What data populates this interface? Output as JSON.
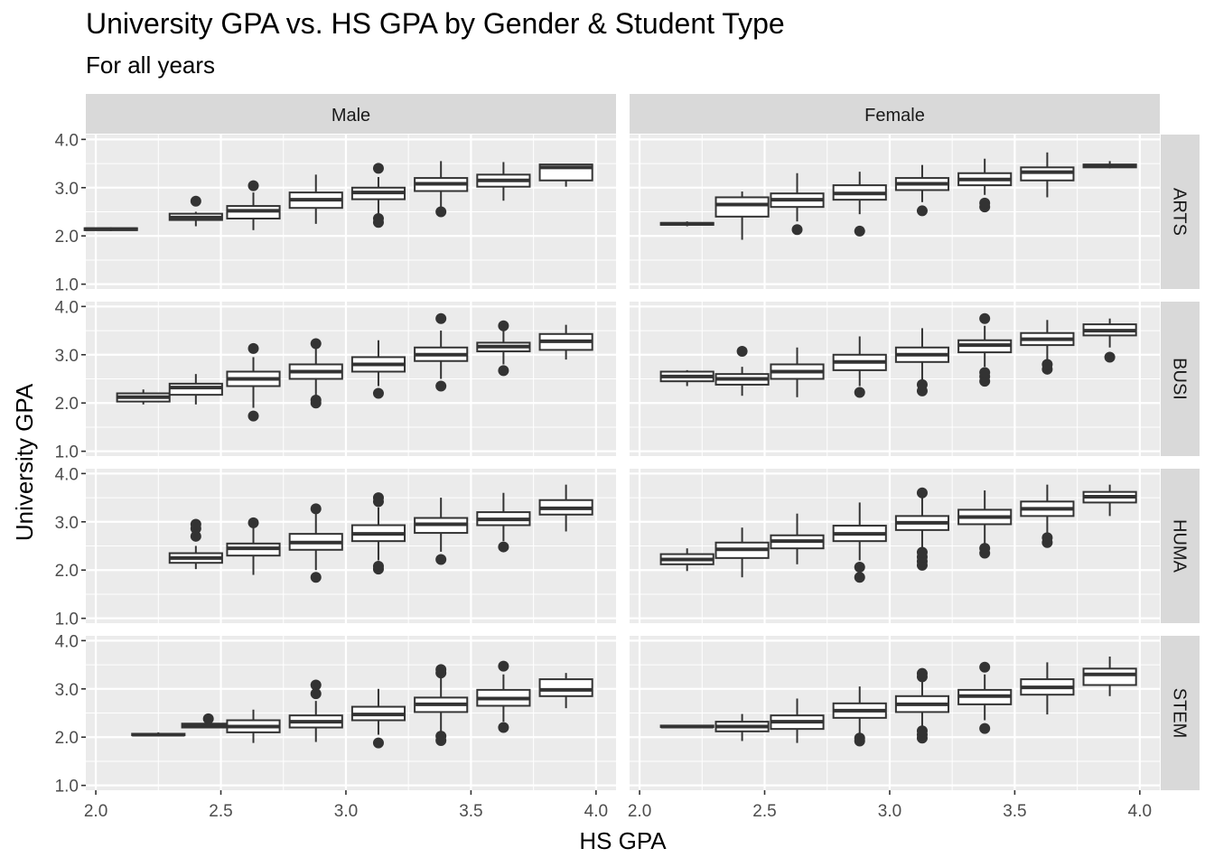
{
  "chart_data": {
    "type": "boxplot",
    "title": "University GPA vs. HS GPA by Gender & Student Type",
    "subtitle": "For all years",
    "xlabel": "HS GPA",
    "ylabel": "University GPA",
    "xlim": [
      1.96,
      4.08
    ],
    "ylim": [
      0.9,
      4.1
    ],
    "x_ticks": [
      "2.0",
      "2.5",
      "3.0",
      "3.5",
      "4.0"
    ],
    "y_ticks": [
      "1.0",
      "2.0",
      "3.0",
      "4.0"
    ],
    "grid": true,
    "columns": [
      "Male",
      "Female"
    ],
    "rows": [
      "ARTS",
      "BUSI",
      "HUMA",
      "STEM"
    ],
    "panels": [
      {
        "row": "ARTS",
        "col": "Male",
        "boxes": [
          {
            "x": 2.06,
            "lw": 2.1,
            "q1": 2.12,
            "med": 2.14,
            "q3": 2.16,
            "uw": 2.18,
            "out": []
          },
          {
            "x": 2.4,
            "lw": 2.2,
            "q1": 2.33,
            "med": 2.38,
            "q3": 2.46,
            "uw": 2.5,
            "out": [
              2.72
            ]
          },
          {
            "x": 2.63,
            "lw": 2.12,
            "q1": 2.36,
            "med": 2.52,
            "q3": 2.62,
            "uw": 2.9,
            "out": [
              3.04
            ]
          },
          {
            "x": 2.88,
            "lw": 2.25,
            "q1": 2.58,
            "med": 2.75,
            "q3": 2.9,
            "uw": 3.27,
            "out": []
          },
          {
            "x": 3.13,
            "lw": 2.45,
            "q1": 2.76,
            "med": 2.9,
            "q3": 3.0,
            "uw": 3.22,
            "out": [
              2.28,
              2.36,
              3.4
            ]
          },
          {
            "x": 3.38,
            "lw": 2.6,
            "q1": 2.93,
            "med": 3.08,
            "q3": 3.2,
            "uw": 3.55,
            "out": [
              2.5
            ]
          },
          {
            "x": 3.63,
            "lw": 2.73,
            "q1": 3.02,
            "med": 3.15,
            "q3": 3.27,
            "uw": 3.53,
            "out": []
          },
          {
            "x": 3.88,
            "lw": 3.02,
            "q1": 3.15,
            "med": 3.42,
            "q3": 3.48,
            "uw": 3.48,
            "out": []
          }
        ]
      },
      {
        "row": "ARTS",
        "col": "Female",
        "boxes": [
          {
            "x": 2.19,
            "lw": 2.2,
            "q1": 2.23,
            "med": 2.25,
            "q3": 2.27,
            "uw": 2.3,
            "out": []
          },
          {
            "x": 2.41,
            "lw": 1.92,
            "q1": 2.4,
            "med": 2.65,
            "q3": 2.8,
            "uw": 2.92,
            "out": []
          },
          {
            "x": 2.63,
            "lw": 2.3,
            "q1": 2.6,
            "med": 2.75,
            "q3": 2.88,
            "uw": 3.3,
            "out": [
              2.13
            ]
          },
          {
            "x": 2.88,
            "lw": 2.45,
            "q1": 2.75,
            "med": 2.88,
            "q3": 3.05,
            "uw": 3.33,
            "out": [
              2.1
            ]
          },
          {
            "x": 3.13,
            "lw": 2.7,
            "q1": 2.95,
            "med": 3.08,
            "q3": 3.2,
            "uw": 3.47,
            "out": [
              2.52
            ]
          },
          {
            "x": 3.38,
            "lw": 2.85,
            "q1": 3.05,
            "med": 3.17,
            "q3": 3.3,
            "uw": 3.6,
            "out": [
              2.6,
              2.68
            ]
          },
          {
            "x": 3.63,
            "lw": 2.8,
            "q1": 3.15,
            "med": 3.32,
            "q3": 3.42,
            "uw": 3.73,
            "out": []
          },
          {
            "x": 3.88,
            "lw": 3.4,
            "q1": 3.42,
            "med": 3.45,
            "q3": 3.48,
            "uw": 3.55,
            "out": []
          }
        ]
      },
      {
        "row": "BUSI",
        "col": "Male",
        "boxes": [
          {
            "x": 2.19,
            "lw": 1.97,
            "q1": 2.03,
            "med": 2.12,
            "q3": 2.2,
            "uw": 2.28,
            "out": []
          },
          {
            "x": 2.4,
            "lw": 1.97,
            "q1": 2.17,
            "med": 2.32,
            "q3": 2.4,
            "uw": 2.6,
            "out": []
          },
          {
            "x": 2.63,
            "lw": 1.9,
            "q1": 2.35,
            "med": 2.5,
            "q3": 2.65,
            "uw": 2.95,
            "out": [
              1.73,
              3.13
            ]
          },
          {
            "x": 2.88,
            "lw": 2.15,
            "q1": 2.5,
            "med": 2.65,
            "q3": 2.8,
            "uw": 3.15,
            "out": [
              2.0,
              2.06,
              3.23
            ]
          },
          {
            "x": 3.13,
            "lw": 2.35,
            "q1": 2.65,
            "med": 2.8,
            "q3": 2.95,
            "uw": 3.3,
            "out": [
              2.2
            ]
          },
          {
            "x": 3.38,
            "lw": 2.5,
            "q1": 2.87,
            "med": 3.0,
            "q3": 3.15,
            "uw": 3.5,
            "out": [
              2.35,
              3.75
            ]
          },
          {
            "x": 3.63,
            "lw": 2.8,
            "q1": 3.07,
            "med": 3.17,
            "q3": 3.25,
            "uw": 3.5,
            "out": [
              2.67,
              3.6
            ]
          },
          {
            "x": 3.88,
            "lw": 2.9,
            "q1": 3.1,
            "med": 3.28,
            "q3": 3.43,
            "uw": 3.62,
            "out": []
          }
        ]
      },
      {
        "row": "BUSI",
        "col": "Female",
        "boxes": [
          {
            "x": 2.19,
            "lw": 2.35,
            "q1": 2.45,
            "med": 2.55,
            "q3": 2.65,
            "uw": 2.68,
            "out": []
          },
          {
            "x": 2.41,
            "lw": 2.15,
            "q1": 2.38,
            "med": 2.5,
            "q3": 2.6,
            "uw": 2.75,
            "out": [
              3.07
            ]
          },
          {
            "x": 2.63,
            "lw": 2.12,
            "q1": 2.5,
            "med": 2.65,
            "q3": 2.8,
            "uw": 3.15,
            "out": []
          },
          {
            "x": 2.88,
            "lw": 2.35,
            "q1": 2.68,
            "med": 2.85,
            "q3": 3.0,
            "uw": 3.38,
            "out": [
              2.22
            ]
          },
          {
            "x": 3.13,
            "lw": 2.48,
            "q1": 2.85,
            "med": 3.0,
            "q3": 3.15,
            "uw": 3.55,
            "out": [
              2.25,
              2.38
            ]
          },
          {
            "x": 3.38,
            "lw": 2.75,
            "q1": 3.05,
            "med": 3.2,
            "q3": 3.3,
            "uw": 3.6,
            "out": [
              2.45,
              2.55,
              2.63,
              3.75
            ]
          },
          {
            "x": 3.63,
            "lw": 2.85,
            "q1": 3.2,
            "med": 3.32,
            "q3": 3.45,
            "uw": 3.72,
            "out": [
              2.7,
              2.8
            ]
          },
          {
            "x": 3.88,
            "lw": 3.15,
            "q1": 3.4,
            "med": 3.5,
            "q3": 3.63,
            "uw": 3.75,
            "out": [
              2.95
            ]
          }
        ]
      },
      {
        "row": "HUMA",
        "col": "Male",
        "boxes": [
          {
            "x": 2.4,
            "lw": 2.02,
            "q1": 2.15,
            "med": 2.25,
            "q3": 2.35,
            "uw": 2.5,
            "out": [
              2.7,
              2.86,
              2.95
            ]
          },
          {
            "x": 2.63,
            "lw": 1.9,
            "q1": 2.3,
            "med": 2.45,
            "q3": 2.55,
            "uw": 2.9,
            "out": [
              2.98
            ]
          },
          {
            "x": 2.88,
            "lw": 2.0,
            "q1": 2.42,
            "med": 2.57,
            "q3": 2.75,
            "uw": 3.2,
            "out": [
              1.85,
              3.27
            ]
          },
          {
            "x": 3.13,
            "lw": 2.2,
            "q1": 2.6,
            "med": 2.75,
            "q3": 2.93,
            "uw": 3.3,
            "out": [
              2.02,
              2.08,
              3.42,
              3.5
            ]
          },
          {
            "x": 3.38,
            "lw": 2.38,
            "q1": 2.77,
            "med": 2.95,
            "q3": 3.08,
            "uw": 3.5,
            "out": [
              2.22
            ]
          },
          {
            "x": 3.63,
            "lw": 2.6,
            "q1": 2.93,
            "med": 3.05,
            "q3": 3.2,
            "uw": 3.6,
            "out": [
              2.48
            ]
          },
          {
            "x": 3.88,
            "lw": 2.8,
            "q1": 3.15,
            "med": 3.28,
            "q3": 3.45,
            "uw": 3.77,
            "out": []
          }
        ]
      },
      {
        "row": "HUMA",
        "col": "Female",
        "boxes": [
          {
            "x": 2.19,
            "lw": 1.98,
            "q1": 2.12,
            "med": 2.22,
            "q3": 2.33,
            "uw": 2.45,
            "out": []
          },
          {
            "x": 2.41,
            "lw": 1.85,
            "q1": 2.25,
            "med": 2.43,
            "q3": 2.57,
            "uw": 2.88,
            "out": []
          },
          {
            "x": 2.63,
            "lw": 2.12,
            "q1": 2.45,
            "med": 2.6,
            "q3": 2.72,
            "uw": 3.17,
            "out": []
          },
          {
            "x": 2.88,
            "lw": 2.2,
            "q1": 2.6,
            "med": 2.75,
            "q3": 2.92,
            "uw": 3.4,
            "out": [
              1.85,
              2.06
            ]
          },
          {
            "x": 3.13,
            "lw": 2.4,
            "q1": 2.83,
            "med": 2.98,
            "q3": 3.12,
            "uw": 3.55,
            "out": [
              2.1,
              2.18,
              2.27,
              2.37,
              3.6
            ]
          },
          {
            "x": 3.38,
            "lw": 2.5,
            "q1": 2.95,
            "med": 3.1,
            "q3": 3.25,
            "uw": 3.65,
            "out": [
              2.35,
              2.45
            ]
          },
          {
            "x": 3.63,
            "lw": 2.7,
            "q1": 3.12,
            "med": 3.27,
            "q3": 3.42,
            "uw": 3.77,
            "out": [
              2.57,
              2.67
            ]
          },
          {
            "x": 3.88,
            "lw": 3.12,
            "q1": 3.4,
            "med": 3.52,
            "q3": 3.62,
            "uw": 3.77,
            "out": []
          }
        ]
      },
      {
        "row": "STEM",
        "col": "Male",
        "boxes": [
          {
            "x": 2.25,
            "lw": 2.02,
            "q1": 2.04,
            "med": 2.05,
            "q3": 2.07,
            "uw": 2.1,
            "out": []
          },
          {
            "x": 2.45,
            "lw": 2.2,
            "q1": 2.2,
            "med": 2.24,
            "q3": 2.28,
            "uw": 2.32,
            "out": [
              2.38
            ]
          },
          {
            "x": 2.63,
            "lw": 1.88,
            "q1": 2.1,
            "med": 2.22,
            "q3": 2.35,
            "uw": 2.57,
            "out": []
          },
          {
            "x": 2.88,
            "lw": 1.9,
            "q1": 2.2,
            "med": 2.32,
            "q3": 2.45,
            "uw": 2.75,
            "out": [
              2.9,
              3.08
            ]
          },
          {
            "x": 3.13,
            "lw": 2.05,
            "q1": 2.35,
            "med": 2.47,
            "q3": 2.63,
            "uw": 3.0,
            "out": [
              1.88
            ]
          },
          {
            "x": 3.38,
            "lw": 2.1,
            "q1": 2.52,
            "med": 2.68,
            "q3": 2.82,
            "uw": 3.27,
            "out": [
              1.93,
              2.02,
              3.33,
              3.4
            ]
          },
          {
            "x": 3.63,
            "lw": 2.32,
            "q1": 2.65,
            "med": 2.8,
            "q3": 2.98,
            "uw": 3.3,
            "out": [
              2.2,
              3.47
            ]
          },
          {
            "x": 3.88,
            "lw": 2.6,
            "q1": 2.85,
            "med": 2.98,
            "q3": 3.2,
            "uw": 3.33,
            "out": []
          }
        ]
      },
      {
        "row": "STEM",
        "col": "Female",
        "boxes": [
          {
            "x": 2.19,
            "lw": 2.2,
            "q1": 2.21,
            "med": 2.22,
            "q3": 2.24,
            "uw": 2.25,
            "out": []
          },
          {
            "x": 2.41,
            "lw": 1.92,
            "q1": 2.12,
            "med": 2.22,
            "q3": 2.32,
            "uw": 2.48,
            "out": []
          },
          {
            "x": 2.63,
            "lw": 1.88,
            "q1": 2.17,
            "med": 2.32,
            "q3": 2.45,
            "uw": 2.8,
            "out": []
          },
          {
            "x": 2.88,
            "lw": 2.05,
            "q1": 2.4,
            "med": 2.55,
            "q3": 2.7,
            "uw": 3.05,
            "out": [
              1.92,
              1.98
            ]
          },
          {
            "x": 3.13,
            "lw": 2.15,
            "q1": 2.52,
            "med": 2.68,
            "q3": 2.85,
            "uw": 3.22,
            "out": [
              1.98,
              2.05,
              2.13,
              3.25,
              3.32
            ]
          },
          {
            "x": 3.38,
            "lw": 2.35,
            "q1": 2.68,
            "med": 2.85,
            "q3": 2.98,
            "uw": 3.3,
            "out": [
              2.18,
              3.45
            ]
          },
          {
            "x": 3.63,
            "lw": 2.47,
            "q1": 2.88,
            "med": 3.03,
            "q3": 3.2,
            "uw": 3.55,
            "out": []
          },
          {
            "x": 3.88,
            "lw": 2.85,
            "q1": 3.08,
            "med": 3.3,
            "q3": 3.42,
            "uw": 3.67,
            "out": []
          }
        ]
      }
    ]
  }
}
